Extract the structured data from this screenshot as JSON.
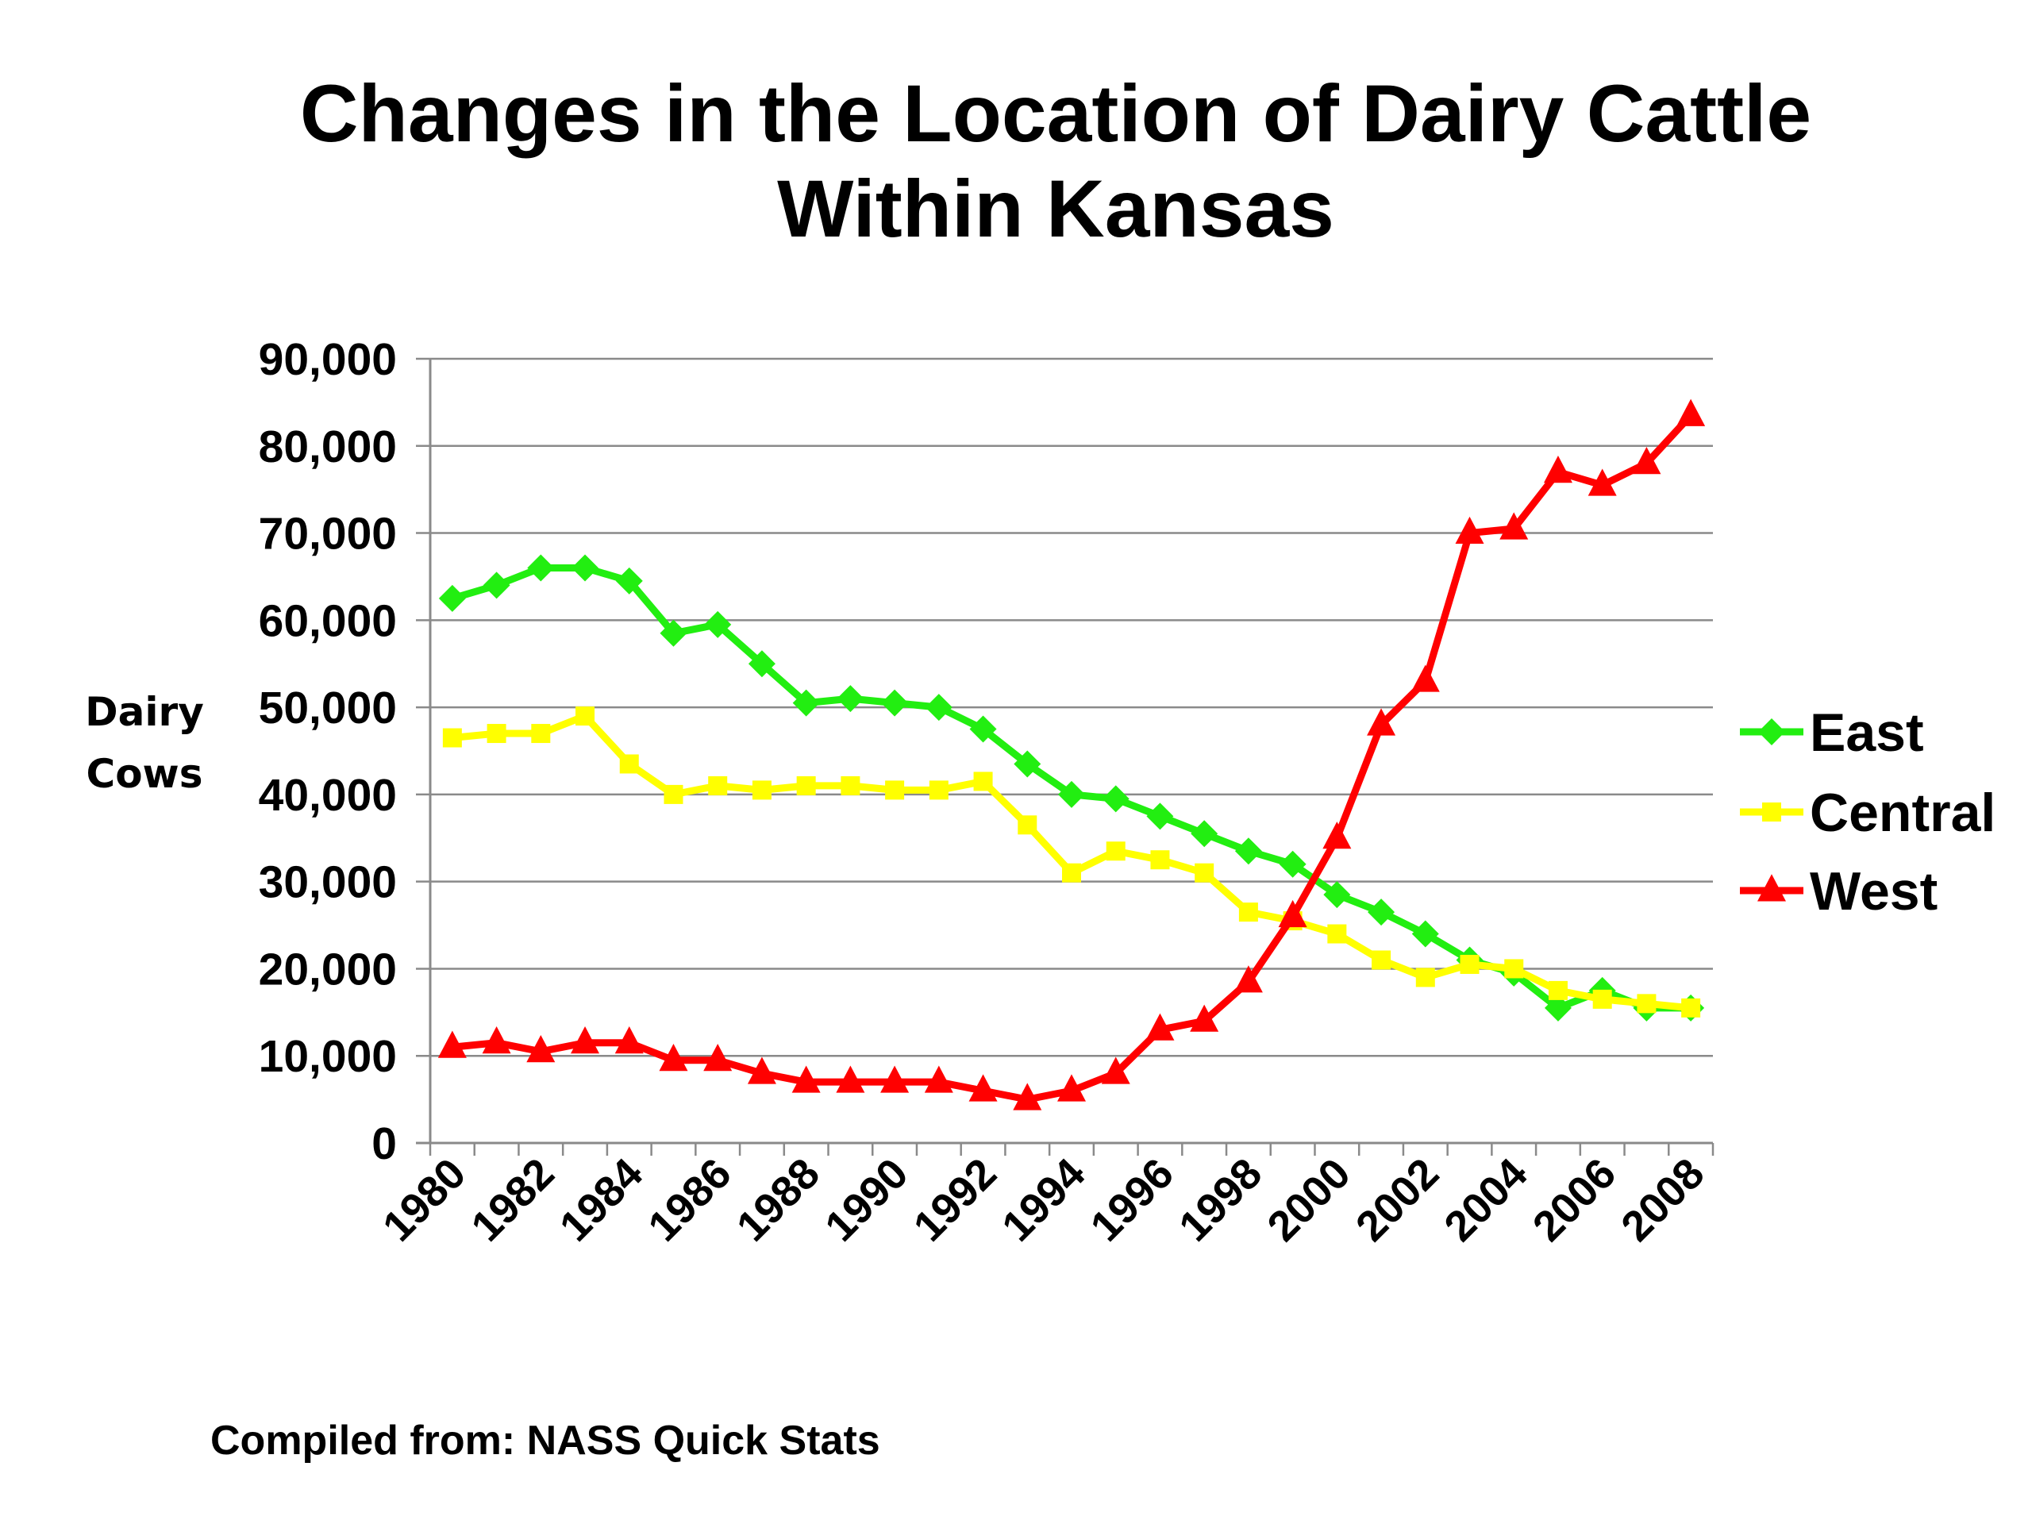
{
  "chart_data": {
    "type": "line",
    "title": [
      "Changes in the Location of Dairy Cattle",
      "Within Kansas"
    ],
    "ylabel": [
      "Dairy",
      "Cows"
    ],
    "xlabel": "",
    "ylim": [
      0,
      90000
    ],
    "y_ticks": [
      0,
      10000,
      20000,
      30000,
      40000,
      50000,
      60000,
      70000,
      80000,
      90000
    ],
    "y_tick_labels": [
      "0",
      "10,000",
      "20,000",
      "30,000",
      "40,000",
      "50,000",
      "60,000",
      "70,000",
      "80,000",
      "90,000"
    ],
    "x": [
      1980,
      1981,
      1982,
      1983,
      1984,
      1985,
      1986,
      1987,
      1988,
      1989,
      1990,
      1991,
      1992,
      1993,
      1994,
      1995,
      1996,
      1997,
      1998,
      1999,
      2000,
      2001,
      2002,
      2003,
      2004,
      2005,
      2006,
      2007,
      2008
    ],
    "x_tick_labels": [
      "1980",
      "1982",
      "1984",
      "1986",
      "1988",
      "1990",
      "1992",
      "1994",
      "1996",
      "1998",
      "2000",
      "2002",
      "2004",
      "2006",
      "2008"
    ],
    "grid": true,
    "legend_position": "right",
    "series": [
      {
        "name": "East",
        "color": "#22ee11",
        "marker": "diamond",
        "values": [
          62500,
          64000,
          66000,
          66000,
          64500,
          58500,
          59500,
          55000,
          50500,
          51000,
          50500,
          50000,
          47500,
          43500,
          40000,
          39500,
          37500,
          35500,
          33500,
          32000,
          28500,
          26500,
          24000,
          21000,
          19500,
          15500,
          17500,
          15500,
          15500
        ]
      },
      {
        "name": "Central",
        "color": "#ffff00",
        "marker": "square",
        "values": [
          46500,
          47000,
          47000,
          49000,
          43500,
          40000,
          41000,
          40500,
          41000,
          41000,
          40500,
          40500,
          41500,
          36500,
          31000,
          33500,
          32500,
          31000,
          26500,
          25500,
          24000,
          21000,
          19000,
          20500,
          20000,
          17500,
          16500,
          16000,
          15500
        ]
      },
      {
        "name": "West",
        "color": "#ff0000",
        "marker": "triangle",
        "values": [
          11000,
          11500,
          10500,
          11500,
          11500,
          9500,
          9500,
          8000,
          7000,
          7000,
          7000,
          7000,
          6000,
          5000,
          6000,
          8000,
          13000,
          14000,
          18500,
          26000,
          35000,
          48000,
          53000,
          70000,
          70500,
          77000,
          75500,
          78000,
          83500
        ]
      }
    ]
  },
  "source": "Compiled from: NASS Quick Stats"
}
